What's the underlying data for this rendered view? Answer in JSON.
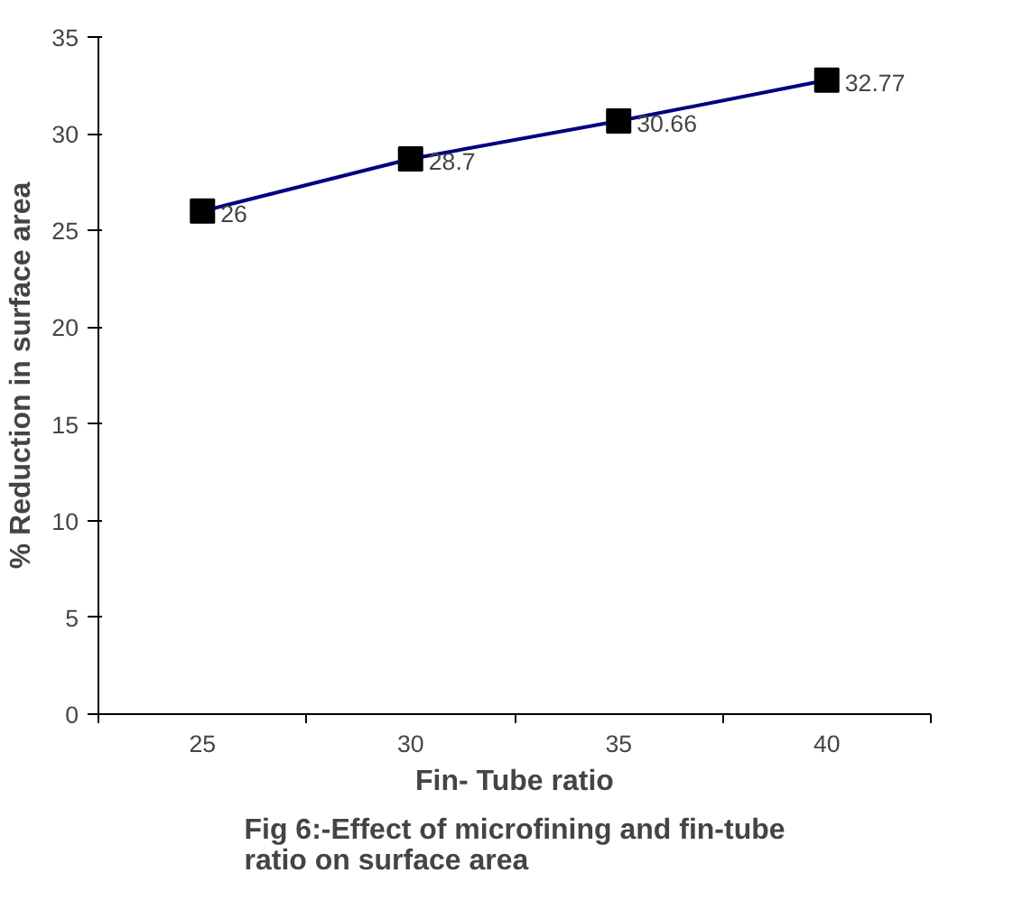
{
  "chart_data": {
    "type": "line",
    "title": "Fig 6:-Effect of microfining and fin-tube ratio on surface area",
    "xlabel": "Fin- Tube ratio",
    "ylabel": "% Reduction in surface area",
    "categories": [
      "25",
      "30",
      "35",
      "40"
    ],
    "series": [
      {
        "color": "#000080",
        "values": [
          26,
          28.7,
          30.66,
          32.77
        ]
      }
    ],
    "ylim": [
      0,
      35
    ],
    "yticks": [
      0,
      5,
      10,
      15,
      20,
      25,
      30,
      35
    ],
    "marker": "square",
    "data_labels": true,
    "grid": false
  }
}
